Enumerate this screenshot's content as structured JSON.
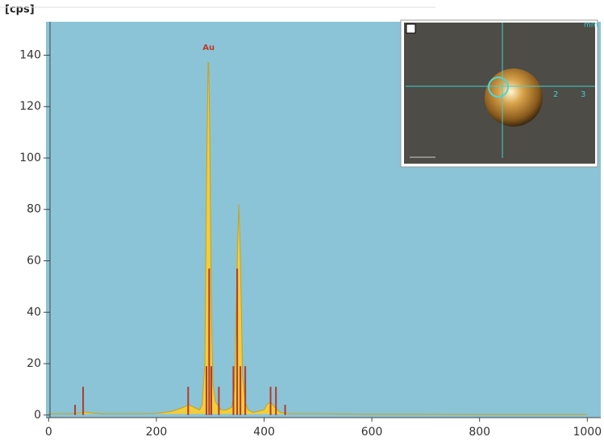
{
  "chart_data": {
    "type": "spectrum",
    "y_label": "[cps]",
    "xlim": [
      -5,
      1025
    ],
    "ylim": [
      -1,
      153
    ],
    "xticks": [
      0,
      200,
      400,
      600,
      800,
      1000
    ],
    "yticks": [
      0,
      20,
      40,
      60,
      80,
      100,
      120,
      140
    ],
    "background": "#8bc4d6",
    "series": [
      {
        "color": "#f2cd3c",
        "x": [
          0,
          20,
          40,
          60,
          68,
          80,
          100,
          150,
          200,
          230,
          250,
          260,
          270,
          280,
          285,
          290,
          293,
          296,
          297,
          299,
          302,
          305,
          310,
          320,
          330,
          340,
          345,
          350,
          353,
          356,
          360,
          365,
          370,
          380,
          400,
          405,
          412,
          420,
          430,
          450,
          500,
          600,
          700,
          800,
          900,
          1000
        ],
        "values": [
          0.5,
          0.5,
          0.5,
          0.8,
          1.2,
          0.8,
          0.5,
          0.5,
          0.6,
          1.5,
          3,
          4,
          3,
          2,
          4,
          20,
          90,
          137,
          137,
          110,
          40,
          12,
          5,
          2,
          2,
          3,
          10,
          60,
          82,
          60,
          15,
          5,
          2,
          1,
          2,
          4,
          5,
          3,
          1,
          0.5,
          0.5,
          0.3,
          0.3,
          0.2,
          0.2,
          0.2
        ]
      }
    ],
    "lines": {
      "color": "#b03a2e",
      "x": [
        49,
        64,
        259,
        293,
        298,
        302,
        316,
        343,
        350,
        356,
        365,
        412,
        422,
        439
      ],
      "values": [
        4,
        11,
        11,
        19,
        57,
        19,
        11,
        19,
        57,
        19,
        19,
        11,
        11,
        4
      ]
    },
    "annotations": [
      {
        "text": "Au",
        "x": 297,
        "y": 143
      }
    ]
  },
  "inset": {
    "unit": "mm",
    "scale_labels": [
      "2",
      "3"
    ]
  }
}
